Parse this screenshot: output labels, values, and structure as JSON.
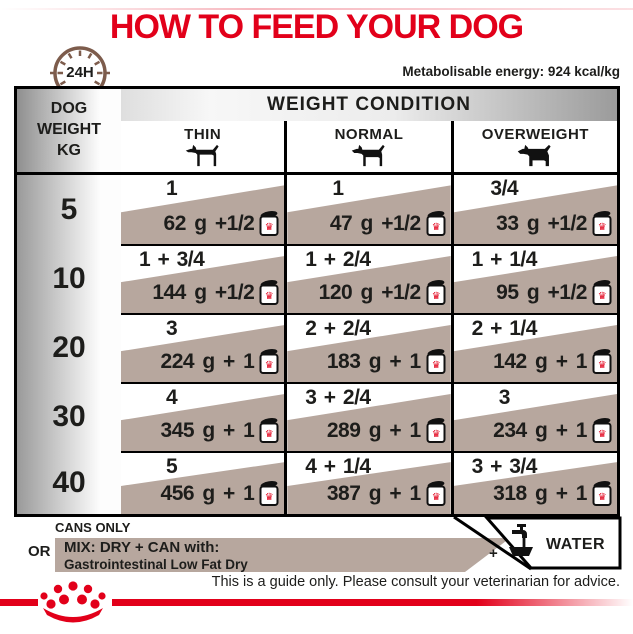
{
  "title": "HOW TO FEED YOUR DOG",
  "energy_note": "Metabolisable energy: 924 kcal/kg",
  "dial_label": "24H",
  "table": {
    "weight_header_lines": [
      "DOG",
      "WEIGHT",
      "KG"
    ],
    "condition_header": "WEIGHT CONDITION",
    "columns": [
      {
        "label": "THIN",
        "icon": "thin-dog-icon"
      },
      {
        "label": "NORMAL",
        "icon": "normal-dog-icon"
      },
      {
        "label": "OVERWEIGHT",
        "icon": "overweight-dog-icon"
      }
    ],
    "rows": [
      {
        "weight": "5",
        "cells": [
          {
            "cups": "1",
            "amount": "62 g +1/2"
          },
          {
            "cups": "1",
            "amount": "47 g +1/2"
          },
          {
            "cups": "3/4",
            "amount": "33 g +1/2"
          }
        ]
      },
      {
        "weight": "10",
        "cells": [
          {
            "cups": "1 + 3/4",
            "amount": "144 g +1/2"
          },
          {
            "cups": "1 + 2/4",
            "amount": "120 g +1/2"
          },
          {
            "cups": "1 + 1/4",
            "amount": "95 g +1/2"
          }
        ]
      },
      {
        "weight": "20",
        "cells": [
          {
            "cups": "3",
            "amount": "224 g + 1"
          },
          {
            "cups": "2 + 2/4",
            "amount": "183 g + 1"
          },
          {
            "cups": "2 + 1/4",
            "amount": "142 g + 1"
          }
        ]
      },
      {
        "weight": "30",
        "cells": [
          {
            "cups": "4",
            "amount": "345 g + 1"
          },
          {
            "cups": "3 + 2/4",
            "amount": "289 g + 1"
          },
          {
            "cups": "3",
            "amount": "234 g + 1"
          }
        ]
      },
      {
        "weight": "40",
        "cells": [
          {
            "cups": "5",
            "amount": "456 g + 1"
          },
          {
            "cups": "4 + 1/4",
            "amount": "387 g + 1"
          },
          {
            "cups": "3 + 3/4",
            "amount": "318 g + 1"
          }
        ]
      }
    ]
  },
  "footer": {
    "cans_only": "CANS ONLY",
    "or_label": "OR",
    "mix_line1": "MIX: DRY + CAN with:",
    "mix_line2": "Gastrointestinal Low Fat Dry",
    "water_plus": "+",
    "water_label": "WATER",
    "disclaimer": "This is a guide only. Please consult your veterinarian for advice."
  },
  "colors": {
    "brand_red": "#e2001a",
    "taupe": "#b7a79e",
    "ink": "#1d1d1b",
    "dial_brown": "#7d5c4c"
  }
}
